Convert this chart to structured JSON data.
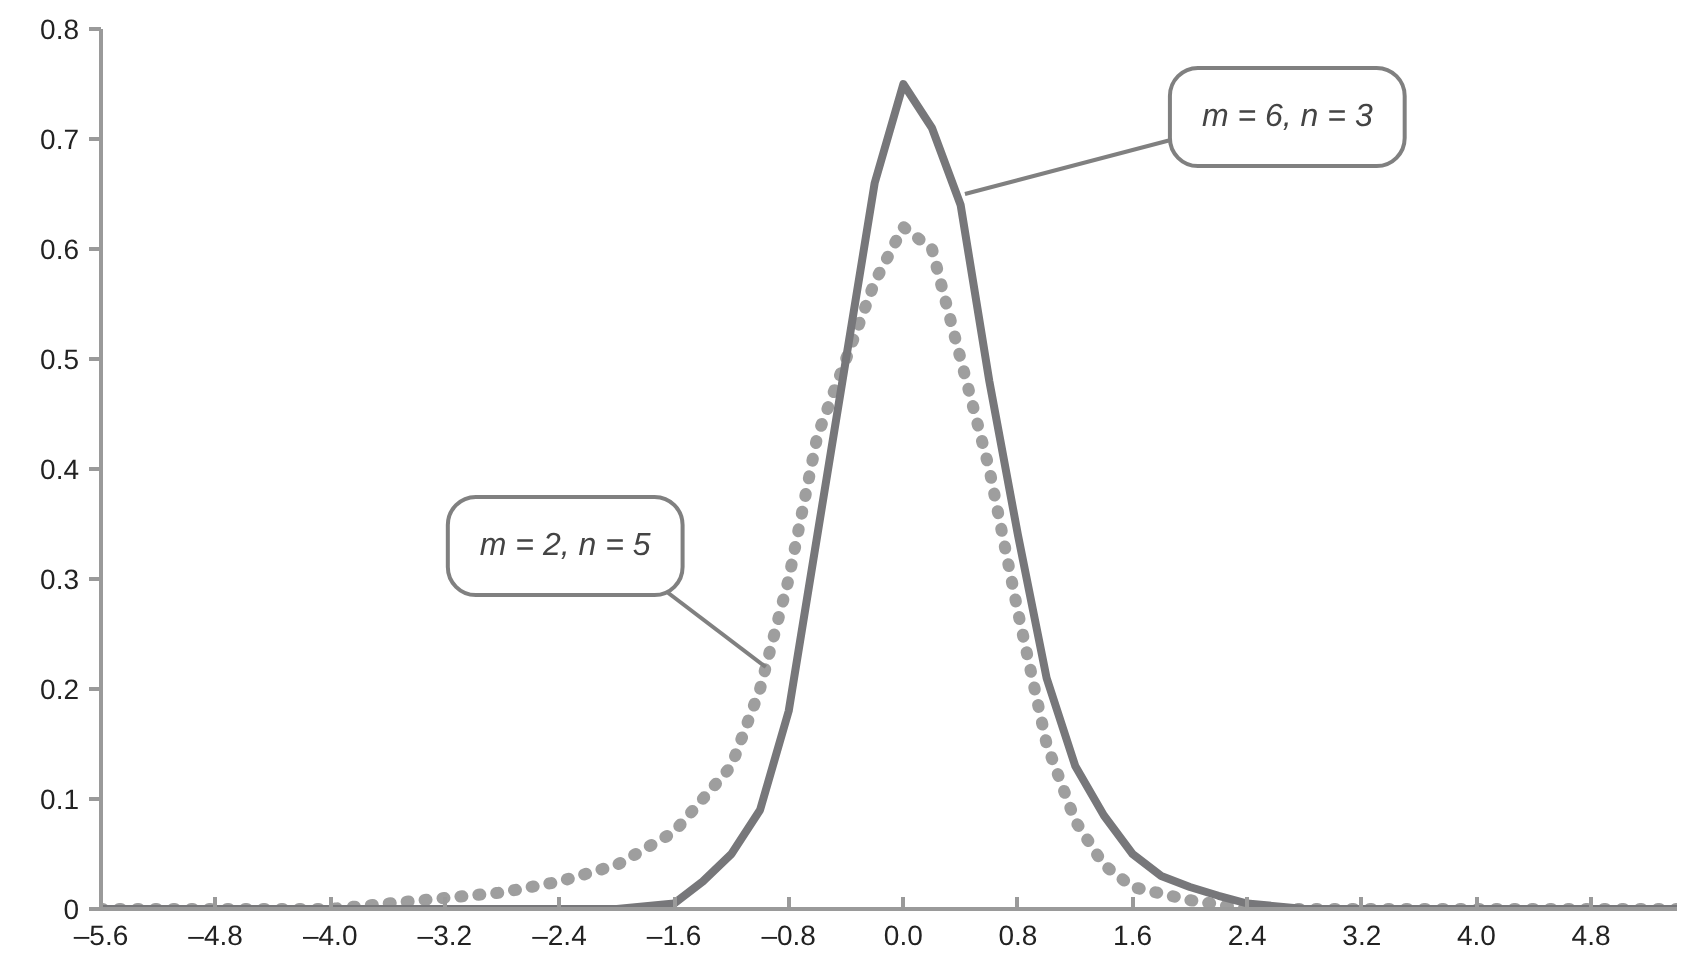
{
  "chart_data": {
    "type": "line",
    "xlim": [
      -5.6,
      5.4
    ],
    "ylim": [
      0,
      0.8
    ],
    "xticks": [
      {
        "value": -5.6,
        "label": "–5.6"
      },
      {
        "value": -4.8,
        "label": "–4.8"
      },
      {
        "value": -4.0,
        "label": "–4.0"
      },
      {
        "value": -3.2,
        "label": "–3.2"
      },
      {
        "value": -2.4,
        "label": "–2.4"
      },
      {
        "value": -1.6,
        "label": "–1.6"
      },
      {
        "value": -0.8,
        "label": "–0.8"
      },
      {
        "value": 0,
        "label": "0.0"
      },
      {
        "value": 0.8,
        "label": "0.8"
      },
      {
        "value": 1.6,
        "label": "1.6"
      },
      {
        "value": 2.4,
        "label": "2.4"
      },
      {
        "value": 3.2,
        "label": "3.2"
      },
      {
        "value": 4.0,
        "label": "4.0"
      },
      {
        "value": 4.8,
        "label": "4.8"
      }
    ],
    "yticks": [
      0,
      0.1,
      0.2,
      0.3,
      0.4,
      0.5,
      0.6,
      0.7,
      0.8
    ],
    "grid": false,
    "marker": "none",
    "series": [
      {
        "color": "#9e9e9e",
        "line_style": "dotted",
        "x": [
          -5.6,
          -4.0,
          -3.2,
          -2.8,
          -2.4,
          -2.0,
          -1.6,
          -1.4,
          -1.2,
          -1.0,
          -0.8,
          -0.6,
          -0.4,
          -0.2,
          0.0,
          0.2,
          0.4,
          0.6,
          0.8,
          1.0,
          1.2,
          1.4,
          1.6,
          2.0,
          2.4,
          5.4
        ],
        "values": [
          0,
          0,
          0.01,
          0.015,
          0.025,
          0.04,
          0.07,
          0.1,
          0.13,
          0.2,
          0.3,
          0.43,
          0.5,
          0.57,
          0.62,
          0.6,
          0.5,
          0.4,
          0.27,
          0.15,
          0.08,
          0.04,
          0.02,
          0.008,
          0,
          0
        ]
      },
      {
        "color": "#77777a",
        "line_style": "solid",
        "x": [
          -5.6,
          -2.0,
          -1.6,
          -1.4,
          -1.2,
          -1.0,
          -0.8,
          -0.6,
          -0.4,
          -0.2,
          0.0,
          0.2,
          0.4,
          0.6,
          0.8,
          1.0,
          1.2,
          1.4,
          1.6,
          1.8,
          2.0,
          2.2,
          2.4,
          2.8,
          5.4
        ],
        "values": [
          0,
          0,
          0.005,
          0.025,
          0.05,
          0.09,
          0.18,
          0.34,
          0.5,
          0.66,
          0.75,
          0.71,
          0.64,
          0.48,
          0.34,
          0.21,
          0.13,
          0.085,
          0.05,
          0.03,
          0.02,
          0.012,
          0.005,
          0,
          0
        ]
      }
    ],
    "annotations": [
      {
        "text": "m = 6, n = 3",
        "x": 0.43,
        "y": 0.65
      },
      {
        "text": "m = 2, n = 5",
        "x": -0.96,
        "y": 0.22
      }
    ]
  }
}
